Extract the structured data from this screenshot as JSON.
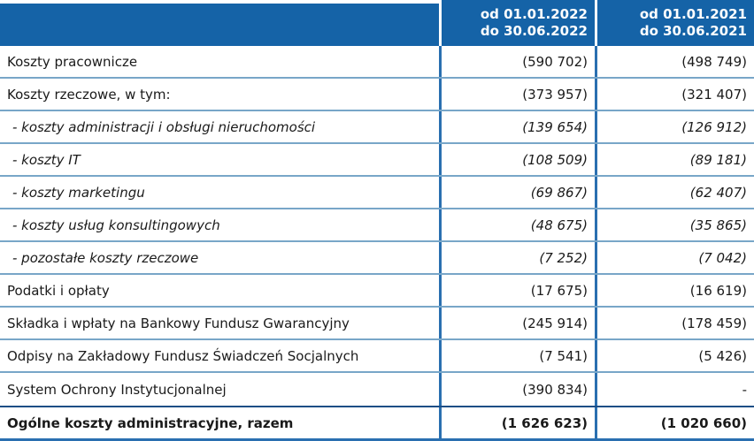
{
  "table": {
    "title": "Ogólne koszty administracyjne",
    "header": {
      "period_2022": "od 01.01.2022\ndo 30.06.2022",
      "period_2021": "od 01.01.2021\ndo 30.06.2021"
    },
    "rows": [
      {
        "label": "Koszty pracownicze",
        "v2022": "(590 702)",
        "v2021": "(498 749)",
        "style": "normal"
      },
      {
        "label": "Koszty rzeczowe, w tym:",
        "v2022": "(373 957)",
        "v2021": "(321 407)",
        "style": "normal"
      },
      {
        "label": "- koszty administracji i obsługi nieruchomości",
        "v2022": "(139 654)",
        "v2021": "(126 912)",
        "style": "sub"
      },
      {
        "label": "- koszty IT",
        "v2022": "(108 509)",
        "v2021": "(89 181)",
        "style": "sub"
      },
      {
        "label": "- koszty marketingu",
        "v2022": "(69 867)",
        "v2021": "(62 407)",
        "style": "sub"
      },
      {
        "label": "- koszty usług konsultingowych",
        "v2022": "(48 675)",
        "v2021": "(35 865)",
        "style": "sub"
      },
      {
        "label": "- pozostałe koszty rzeczowe",
        "v2022": "(7 252)",
        "v2021": "(7 042)",
        "style": "sub"
      },
      {
        "label": "Podatki i opłaty",
        "v2022": "(17 675)",
        "v2021": "(16 619)",
        "style": "normal"
      },
      {
        "label": "Składka i wpłaty na Bankowy Fundusz Gwarancyjny",
        "v2022": "(245 914)",
        "v2021": "(178 459)",
        "style": "normal"
      },
      {
        "label": "Odpisy na Zakładowy Fundusz Świadczeń Socjalnych",
        "v2022": "(7 541)",
        "v2021": "(5 426)",
        "style": "normal"
      },
      {
        "label": "System Ochrony Instytucjonalnej",
        "v2022": "(390 834)",
        "v2021": "-",
        "style": "normal"
      },
      {
        "label": "Ogólne koszty administracyjne, razem",
        "v2022": "(1 626 623)",
        "v2021": "(1 020 660)",
        "style": "total"
      }
    ]
  },
  "colors": {
    "header_bg": "#1563a7",
    "grid_blue": "#2a6fb0",
    "light_divider": "#78a6c8",
    "heavy_dark": "#1d4e86",
    "text": "#1a1a1a",
    "header_text": "#ffffff"
  }
}
